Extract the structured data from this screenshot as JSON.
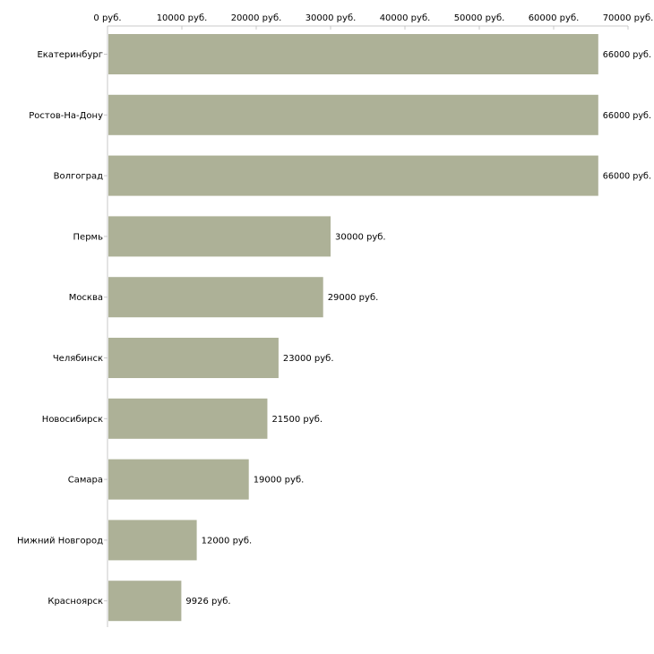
{
  "chart_data": {
    "type": "bar",
    "orientation": "horizontal",
    "title": "",
    "xlabel": "",
    "ylabel": "",
    "xlim": [
      0,
      70000
    ],
    "x_ticks": [
      0,
      10000,
      20000,
      30000,
      40000,
      50000,
      60000,
      70000
    ],
    "x_tick_labels": [
      "0 руб.",
      "10000 руб.",
      "20000 руб.",
      "30000 руб.",
      "40000 руб.",
      "50000 руб.",
      "60000 руб.",
      "70000 руб."
    ],
    "axis_position": "top",
    "grid": false,
    "legend": "none",
    "bar_color": "#adb197",
    "categories": [
      "Екатеринбург",
      "Ростов-На-Дону",
      "Волгоград",
      "Пермь",
      "Москва",
      "Челябинск",
      "Новосибирск",
      "Самара",
      "Нижний Новгород",
      "Красноярск"
    ],
    "values": [
      66000,
      66000,
      66000,
      30000,
      29000,
      23000,
      21500,
      19000,
      12000,
      9926
    ],
    "data_labels": [
      "66000 руб.",
      "66000 руб.",
      "66000 руб.",
      "30000 руб.",
      "29000 руб.",
      "23000 руб.",
      "21500 руб.",
      "19000 руб.",
      "12000 руб.",
      "9926 руб."
    ]
  }
}
